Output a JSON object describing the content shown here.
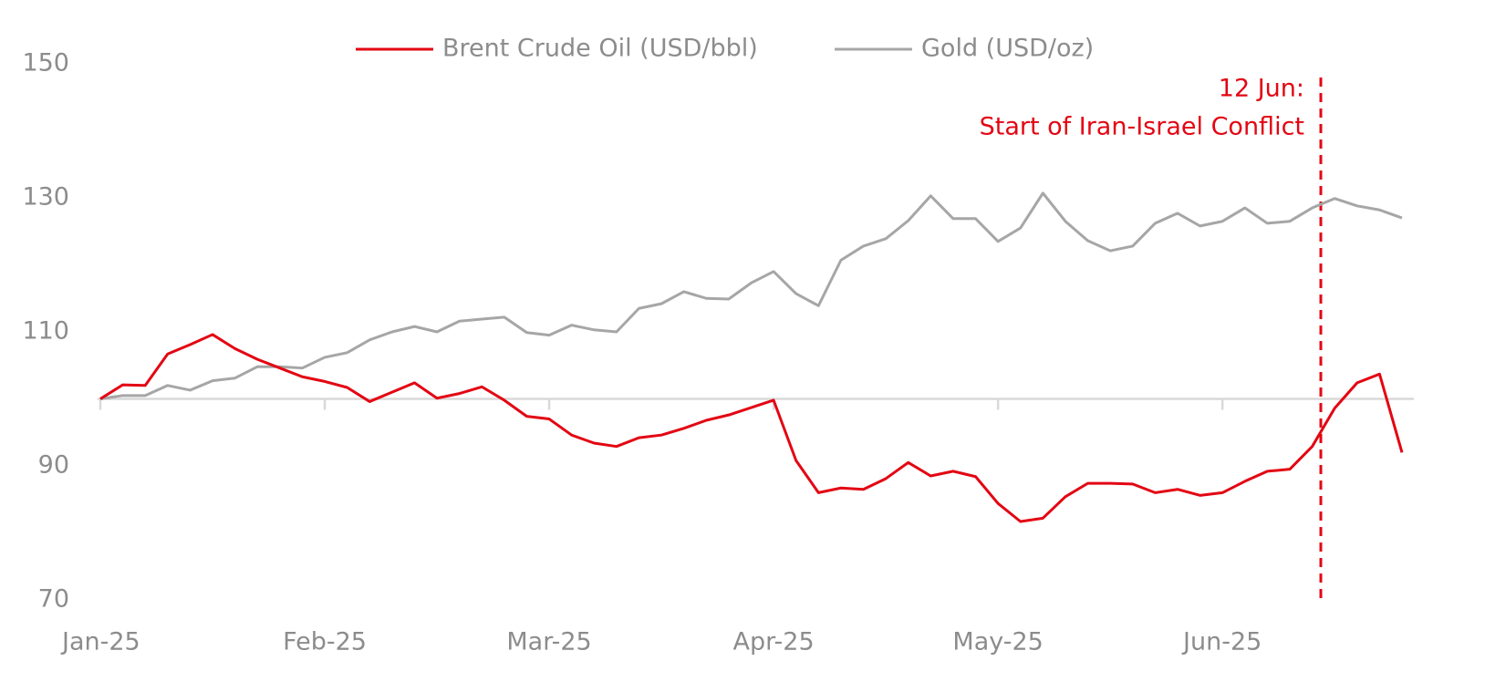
{
  "chart_data": {
    "type": "line",
    "categories": [
      "Jan-25",
      null,
      null,
      null,
      null,
      null,
      null,
      null,
      null,
      null,
      "Feb-25",
      null,
      null,
      null,
      null,
      null,
      null,
      null,
      null,
      null,
      "Mar-25",
      null,
      null,
      null,
      null,
      null,
      null,
      null,
      null,
      null,
      "Apr-25",
      null,
      null,
      null,
      null,
      null,
      null,
      null,
      null,
      null,
      "May-25",
      null,
      null,
      null,
      null,
      null,
      null,
      null,
      null,
      null,
      "Jun-25",
      null,
      null,
      null,
      null,
      null,
      null,
      null,
      null
    ],
    "series": [
      {
        "name": "Brent Crude Oil (USD/bbl)",
        "color": "#e30613",
        "values": [
          100,
          102.1,
          102,
          106.7,
          108.1,
          109.6,
          107.5,
          105.9,
          104.6,
          103.3,
          102.6,
          101.7,
          99.6,
          101,
          102.4,
          100.1,
          100.8,
          101.8,
          99.8,
          97.4,
          97,
          94.6,
          93.4,
          92.9,
          94.2,
          94.6,
          95.6,
          96.8,
          97.6,
          98.7,
          99.8,
          90.8,
          86,
          86.7,
          86.5,
          88.1,
          90.5,
          88.5,
          89.2,
          88.4,
          84.4,
          81.7,
          82.2,
          85.4,
          87.4,
          87.4,
          87.3,
          86,
          86.5,
          85.6,
          86,
          87.7,
          89.2,
          89.5,
          92.9,
          98.6,
          102.4,
          103.7,
          92
        ]
      },
      {
        "name": "Gold (USD/oz)",
        "color": "#a6a6a6",
        "values": [
          100,
          100.5,
          100.5,
          102,
          101.3,
          102.7,
          103.1,
          104.8,
          104.8,
          104.6,
          106.2,
          106.9,
          108.8,
          110,
          110.8,
          110,
          111.6,
          111.9,
          112.2,
          109.9,
          109.5,
          111,
          110.3,
          110,
          113.5,
          114.2,
          116,
          115,
          114.9,
          117.3,
          119,
          115.7,
          113.9,
          120.7,
          122.8,
          123.9,
          126.6,
          130.3,
          126.9,
          126.9,
          123.5,
          125.5,
          130.7,
          126.5,
          123.6,
          122.1,
          122.8,
          126.2,
          127.7,
          125.8,
          126.5,
          128.5,
          126.2,
          126.5,
          128.5,
          129.9,
          128.8,
          128.2,
          127
        ]
      }
    ],
    "ylim": [
      70,
      150
    ],
    "yticks": [
      70,
      90,
      110,
      130,
      150
    ],
    "reference_line": 100,
    "annotation": [
      "12 Jun:",
      "Start of Iran-Israel Conflict"
    ]
  }
}
